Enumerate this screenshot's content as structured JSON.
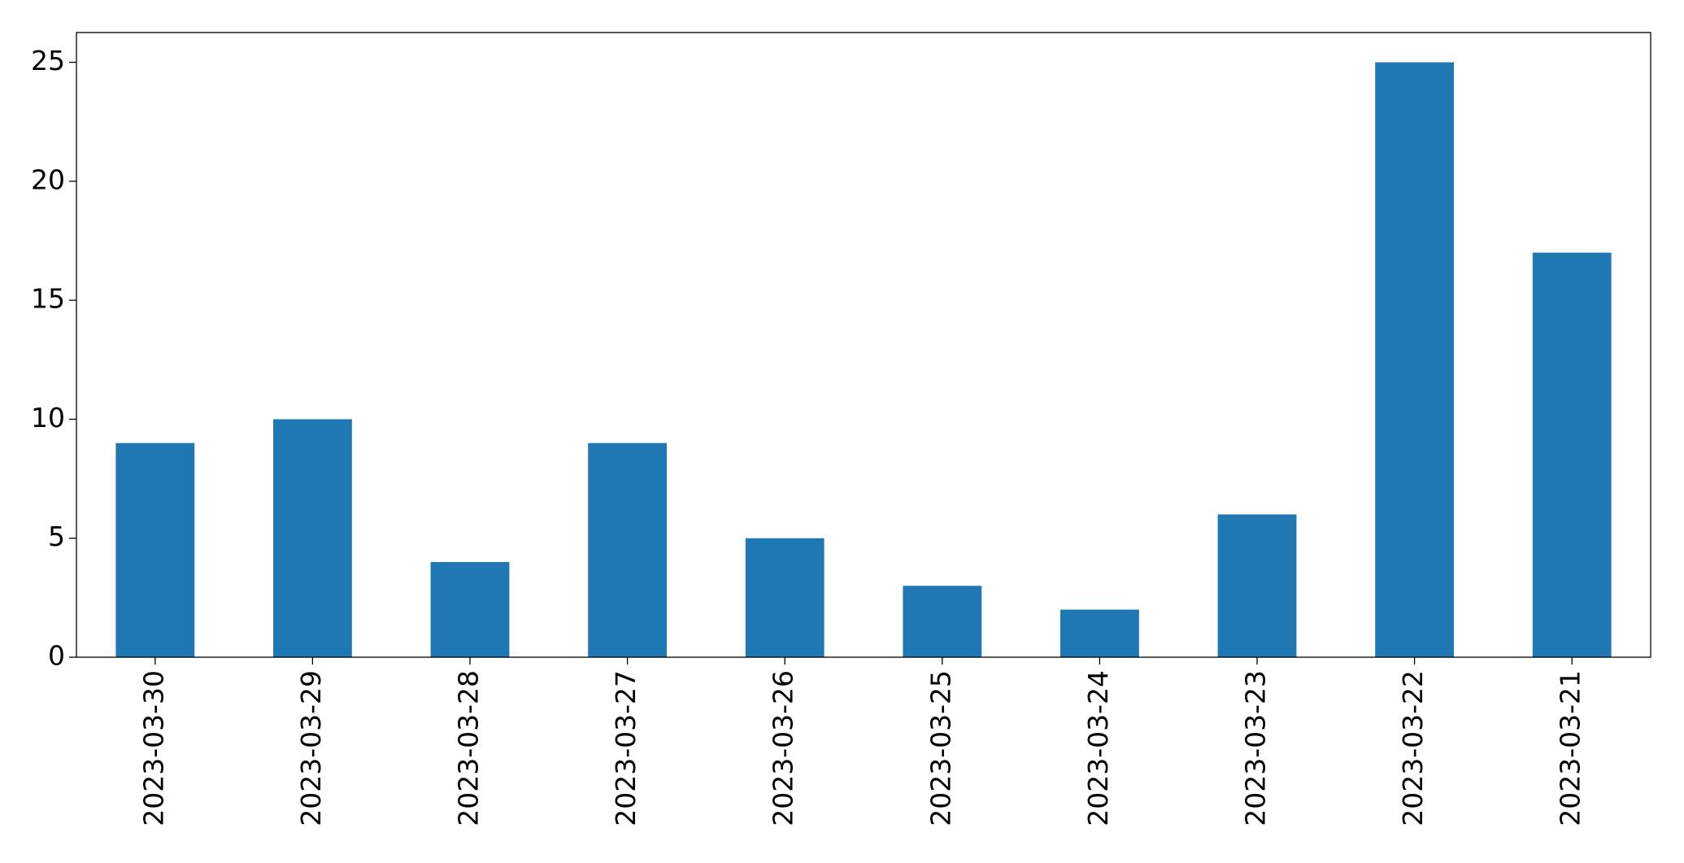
{
  "chart_data": {
    "type": "bar",
    "categories": [
      "2023-03-30",
      "2023-03-29",
      "2023-03-28",
      "2023-03-27",
      "2023-03-26",
      "2023-03-25",
      "2023-03-24",
      "2023-03-23",
      "2023-03-22",
      "2023-03-21"
    ],
    "values": [
      9,
      10,
      4,
      9,
      5,
      3,
      2,
      6,
      25,
      17
    ],
    "color": "#1f77b4",
    "ylim": [
      0,
      26.25
    ],
    "yticks": [
      0,
      5,
      10,
      15,
      20,
      25
    ],
    "grid": false
  }
}
